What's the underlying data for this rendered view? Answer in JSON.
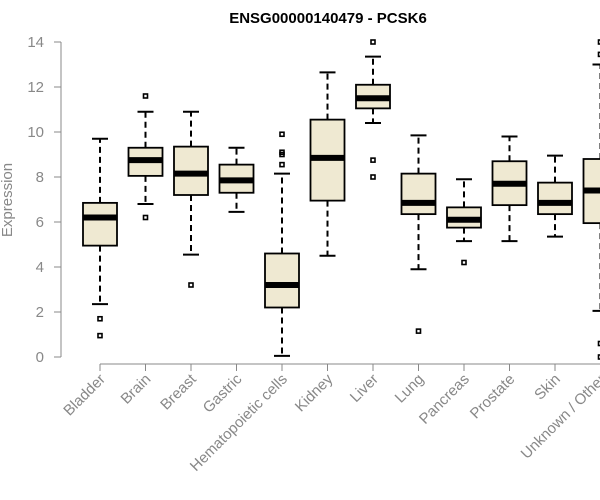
{
  "chart_data": {
    "type": "boxplot",
    "title": "ENSG00000140479 - PCSK6",
    "xlabel": "",
    "ylabel": "Expression",
    "ylim": [
      0,
      14
    ],
    "yticks": [
      0,
      2,
      4,
      6,
      8,
      10,
      12,
      14
    ],
    "grid": false,
    "categories": [
      "Bladder",
      "Brain",
      "Breast",
      "Gastric",
      "Hematopoietic cells",
      "Kidney",
      "Liver",
      "Lung",
      "Pancreas",
      "Prostate",
      "Skin",
      "Unknown / Other"
    ],
    "boxes": [
      {
        "label": "Bladder",
        "whisker_low": 2.35,
        "q1": 4.95,
        "median": 6.2,
        "q3": 6.85,
        "whisker_high": 9.7,
        "outliers": [
          0.95,
          1.7
        ]
      },
      {
        "label": "Brain",
        "whisker_low": 6.8,
        "q1": 8.05,
        "median": 8.75,
        "q3": 9.3,
        "whisker_high": 10.9,
        "outliers": [
          6.2,
          11.6
        ]
      },
      {
        "label": "Breast",
        "whisker_low": 4.55,
        "q1": 7.2,
        "median": 8.15,
        "q3": 9.35,
        "whisker_high": 10.9,
        "outliers": [
          3.2
        ]
      },
      {
        "label": "Gastric",
        "whisker_low": 6.45,
        "q1": 7.3,
        "median": 7.85,
        "q3": 8.55,
        "whisker_high": 9.3,
        "outliers": []
      },
      {
        "label": "Hematopoietic cells",
        "whisker_low": 0.05,
        "q1": 2.2,
        "median": 3.2,
        "q3": 4.6,
        "whisker_high": 8.15,
        "outliers": [
          8.55,
          9.0,
          9.1,
          9.9
        ]
      },
      {
        "label": "Kidney",
        "whisker_low": 4.5,
        "q1": 6.95,
        "median": 8.85,
        "q3": 10.55,
        "whisker_high": 12.65,
        "outliers": []
      },
      {
        "label": "Liver",
        "whisker_low": 10.4,
        "q1": 11.05,
        "median": 11.5,
        "q3": 12.1,
        "whisker_high": 13.35,
        "outliers": [
          8.0,
          8.75,
          14.0
        ]
      },
      {
        "label": "Lung",
        "whisker_low": 3.9,
        "q1": 6.35,
        "median": 6.85,
        "q3": 8.15,
        "whisker_high": 9.85,
        "outliers": [
          1.15
        ]
      },
      {
        "label": "Pancreas",
        "whisker_low": 5.15,
        "q1": 5.75,
        "median": 6.1,
        "q3": 6.65,
        "whisker_high": 7.9,
        "outliers": [
          4.2
        ]
      },
      {
        "label": "Prostate",
        "whisker_low": 5.15,
        "q1": 6.75,
        "median": 7.7,
        "q3": 8.7,
        "whisker_high": 9.8,
        "outliers": []
      },
      {
        "label": "Skin",
        "whisker_low": 5.35,
        "q1": 6.35,
        "median": 6.85,
        "q3": 7.75,
        "whisker_high": 8.95,
        "outliers": []
      },
      {
        "label": "Unknown / Other",
        "whisker_low": 2.05,
        "q1": 5.95,
        "median": 7.4,
        "q3": 8.8,
        "whisker_high": 13.0,
        "outliers": [
          0.0,
          0.6,
          13.45,
          14.0
        ]
      }
    ]
  },
  "colors": {
    "box_fill": "#efe9d2",
    "axis": "#888888",
    "text": "#888888",
    "title": "#000000"
  }
}
